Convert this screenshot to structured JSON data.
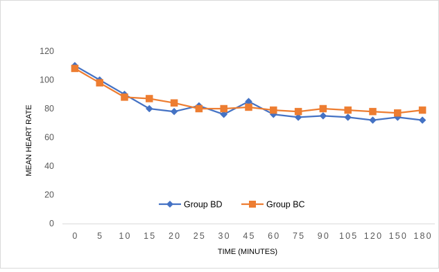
{
  "chart_data": {
    "type": "line",
    "title": "",
    "xlabel": "TIME (MINUTES)",
    "ylabel": "MEAN HEART RATE",
    "x": [
      "0",
      "5",
      "10",
      "15",
      "20",
      "25",
      "30",
      "45",
      "60",
      "75",
      "90",
      "105",
      "120",
      "150",
      "180"
    ],
    "ylim": [
      0,
      120
    ],
    "yticks": [
      0,
      20,
      40,
      60,
      80,
      100,
      120
    ],
    "grid": false,
    "legend_position": "bottom-center inside plot",
    "series": [
      {
        "name": "Group BD",
        "color": "#4472c4",
        "marker": "diamond",
        "values": [
          110,
          100,
          90,
          80,
          78,
          82,
          76,
          85,
          76,
          74,
          75,
          74,
          72,
          74,
          72
        ]
      },
      {
        "name": "Group BC",
        "color": "#ed7d31",
        "marker": "square",
        "values": [
          108,
          98,
          88,
          87,
          84,
          80,
          80,
          81,
          79,
          78,
          80,
          79,
          78,
          77,
          79
        ]
      }
    ]
  }
}
